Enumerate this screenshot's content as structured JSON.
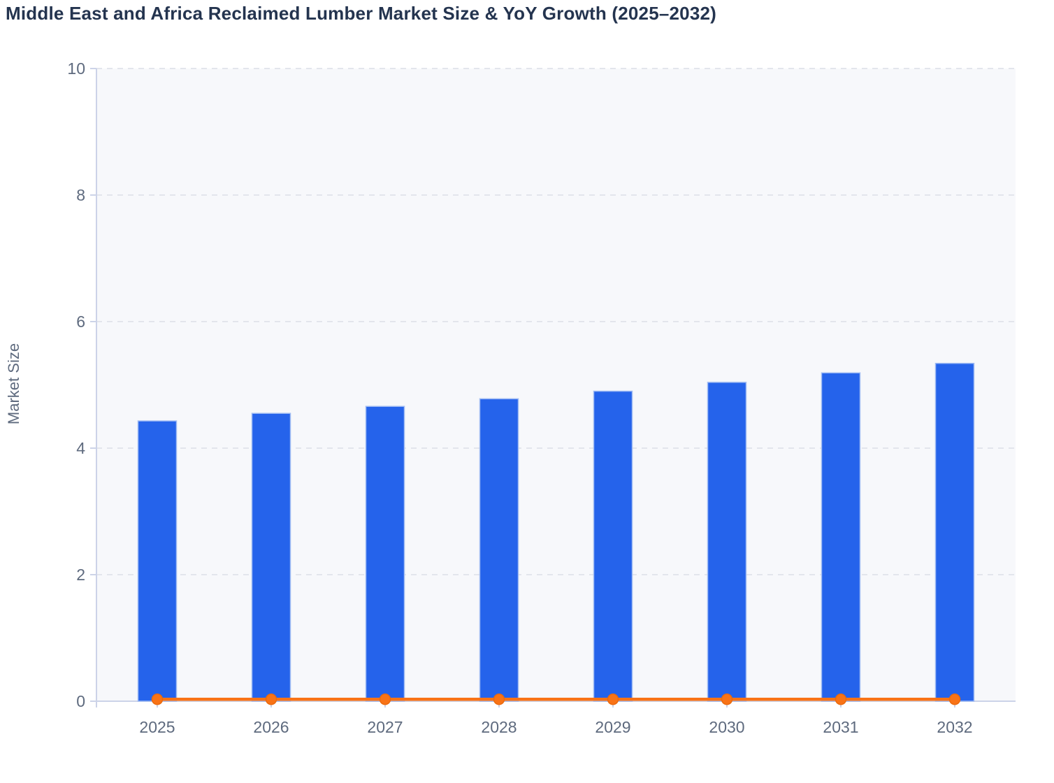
{
  "chart_data": {
    "type": "bar",
    "title": "Middle East and Africa Reclaimed Lumber Market Size & YoY Growth (2025–2032)",
    "xlabel": "",
    "ylabel": "Market Size",
    "categories": [
      "2025",
      "2026",
      "2027",
      "2028",
      "2029",
      "2030",
      "2031",
      "2032"
    ],
    "series": [
      {
        "name": "Market Size",
        "type": "bar",
        "color": "#2563eb",
        "edge_color": "#9fbbf3",
        "values": [
          4.43,
          4.55,
          4.66,
          4.78,
          4.9,
          5.04,
          5.19,
          5.34
        ]
      },
      {
        "name": "YoY Growth",
        "type": "line",
        "color": "#f97316",
        "marker_edge_color": "#ea6a0e",
        "marker": "circle",
        "values": [
          0.03,
          0.03,
          0.03,
          0.03,
          0.03,
          0.03,
          0.03,
          0.03
        ]
      }
    ],
    "ylim": [
      0,
      10
    ],
    "yticks": [
      0,
      2,
      4,
      6,
      8,
      10
    ],
    "grid": true,
    "gridline_style": "dashed",
    "legend_position": "none",
    "colors": {
      "plot_bg": "#f7f8fb",
      "grid": "#e3e5ec",
      "axis": "#ccd3e8",
      "tick_text": "#5e6a7e",
      "title_text": "#24344f"
    }
  }
}
